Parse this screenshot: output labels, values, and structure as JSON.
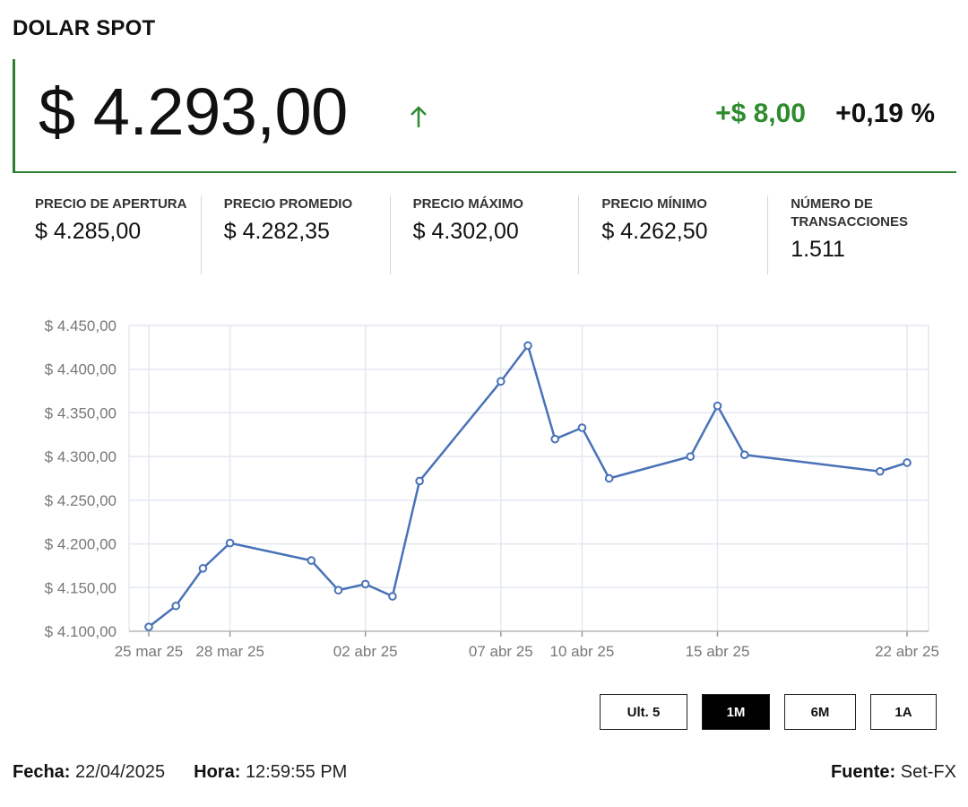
{
  "header": {
    "title": "DOLAR SPOT"
  },
  "quote": {
    "price": "$ 4.293,00",
    "arrow_icon": "arrow-up-icon",
    "change": "+$ 8,00",
    "change_pct": "+0,19 %",
    "up_color": "#2e8b2e"
  },
  "stats": [
    {
      "label": "PRECIO DE APERTURA",
      "value": "$ 4.285,00"
    },
    {
      "label": "PRECIO PROMEDIO",
      "value": "$ 4.282,35"
    },
    {
      "label": "PRECIO MÁXIMO",
      "value": "$ 4.302,00"
    },
    {
      "label": "PRECIO MÍNIMO",
      "value": "$ 4.262,50"
    },
    {
      "label": "NÚMERO DE TRANSACCIONES",
      "value": "1.511"
    }
  ],
  "chart_data": {
    "type": "line",
    "title": "",
    "xlabel": "",
    "ylabel": "",
    "ylim": [
      4100,
      4450
    ],
    "y_ticks": [
      "$ 4.100,00",
      "$ 4.150,00",
      "$ 4.200,00",
      "$ 4.250,00",
      "$ 4.300,00",
      "$ 4.350,00",
      "$ 4.400,00",
      "$ 4.450,00"
    ],
    "x_tick_labels": [
      "25 mar 25",
      "28 mar 25",
      "02 abr 25",
      "07 abr 25",
      "10 abr 25",
      "15 abr 25",
      "22 abr 25"
    ],
    "grid": true,
    "line_color": "#4a72b8",
    "series": [
      {
        "x": [
          "2025-03-25",
          "2025-03-26",
          "2025-03-27",
          "2025-03-28",
          "2025-03-31",
          "2025-04-01",
          "2025-04-02",
          "2025-04-03",
          "2025-04-04",
          "2025-04-07",
          "2025-04-08",
          "2025-04-09",
          "2025-04-10",
          "2025-04-11",
          "2025-04-14",
          "2025-04-15",
          "2025-04-16",
          "2025-04-21",
          "2025-04-22"
        ],
        "values": [
          4105,
          4129,
          4172,
          4201,
          4181,
          4147,
          4154,
          4140,
          4272,
          4386,
          4427,
          4320,
          4333,
          4275,
          4300,
          4358,
          4302,
          4283,
          4293
        ]
      }
    ]
  },
  "range_buttons": [
    {
      "label": "Ult. 5",
      "active": false
    },
    {
      "label": "1M",
      "active": true
    },
    {
      "label": "6M",
      "active": false
    },
    {
      "label": "1A",
      "active": false
    }
  ],
  "footer": {
    "date_label": "Fecha:",
    "date_value": "22/04/2025",
    "time_label": "Hora:",
    "time_value": "12:59:55 PM",
    "source_label": "Fuente:",
    "source_value": "Set-FX"
  }
}
